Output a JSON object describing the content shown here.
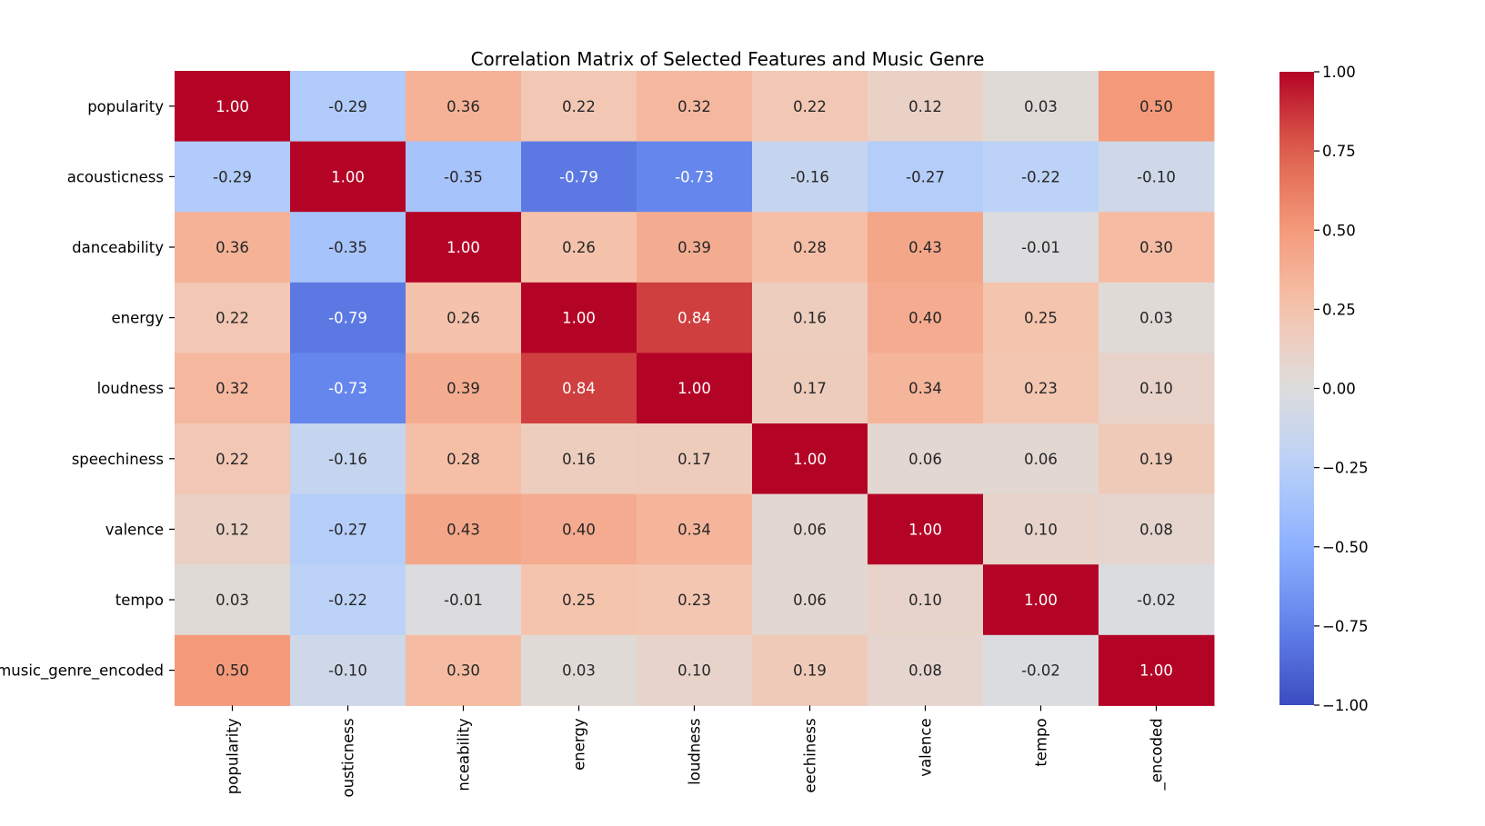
{
  "chart_data": {
    "type": "heatmap",
    "title": "Correlation Matrix of Selected Features and Music Genre",
    "xlabel": "",
    "ylabel": "",
    "rows": [
      "popularity",
      "acousticness",
      "danceability",
      "energy",
      "loudness",
      "speechiness",
      "valence",
      "tempo",
      "music_genre_encoded"
    ],
    "columns": [
      "popularity",
      "acousticness",
      "danceability",
      "energy",
      "loudness",
      "speechiness",
      "valence",
      "tempo",
      "music_genre_encoded"
    ],
    "x_tick_labels_visible": [
      "popularity",
      "ousticness",
      "nceability",
      "energy",
      "loudness",
      "eechiness",
      "valence",
      "tempo",
      "_encoded"
    ],
    "values": [
      [
        1.0,
        -0.29,
        0.36,
        0.22,
        0.32,
        0.22,
        0.12,
        0.03,
        0.5
      ],
      [
        -0.29,
        1.0,
        -0.35,
        -0.79,
        -0.73,
        -0.16,
        -0.27,
        -0.22,
        -0.1
      ],
      [
        0.36,
        -0.35,
        1.0,
        0.26,
        0.39,
        0.28,
        0.43,
        -0.01,
        0.3
      ],
      [
        0.22,
        -0.79,
        0.26,
        1.0,
        0.84,
        0.16,
        0.4,
        0.25,
        0.03
      ],
      [
        0.32,
        -0.73,
        0.39,
        0.84,
        1.0,
        0.17,
        0.34,
        0.23,
        0.1
      ],
      [
        0.22,
        -0.16,
        0.28,
        0.16,
        0.17,
        1.0,
        0.06,
        0.06,
        0.19
      ],
      [
        0.12,
        -0.27,
        0.43,
        0.4,
        0.34,
        0.06,
        1.0,
        0.1,
        0.08
      ],
      [
        0.03,
        -0.22,
        -0.01,
        0.25,
        0.23,
        0.06,
        0.1,
        1.0,
        -0.02
      ],
      [
        0.5,
        -0.1,
        0.3,
        0.03,
        0.1,
        0.19,
        0.08,
        -0.02,
        1.0
      ]
    ],
    "colormap": "coolwarm",
    "vmin": -1.0,
    "vmax": 1.0,
    "colorbar_ticks": [
      "1.00",
      "0.75",
      "0.50",
      "0.25",
      "0.00",
      "−0.25",
      "−0.50",
      "−0.75",
      "−1.00"
    ],
    "colorbar_tick_values": [
      1.0,
      0.75,
      0.5,
      0.25,
      0.0,
      -0.25,
      -0.5,
      -0.75,
      -1.0
    ],
    "annotations_format": "0.00"
  }
}
